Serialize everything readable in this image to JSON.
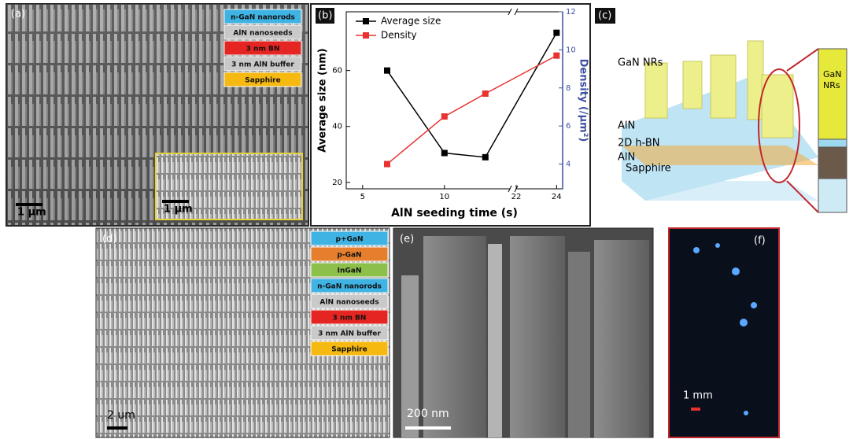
{
  "panels": {
    "a": {
      "label": "(a)",
      "legend": [
        {
          "text": "n-GaN nanorods",
          "color": "#3fb3e3"
        },
        {
          "text": "AlN nanoseeds",
          "color": "#c9c9c9"
        },
        {
          "text": "3 nm BN",
          "color": "#e52521"
        },
        {
          "text": "3 nm AlN buffer",
          "color": "#c9c9c9"
        },
        {
          "text": "Sapphire",
          "color": "#f6b911"
        }
      ],
      "scale_bar": "1 µm",
      "inset_scale_bar": "1 µm"
    },
    "c": {
      "label": "(c)",
      "nanorods": "GaN NRs",
      "layer_top": "AlN",
      "layer_bn": "2D h-BN",
      "layer_bottom": "AlN",
      "substrate": "Sapphire",
      "zoom_line1": "GaN",
      "zoom_line2": "NRs"
    },
    "d": {
      "label": "(d)",
      "legend": [
        {
          "text": "p+GaN",
          "color": "#3fb3e3"
        },
        {
          "text": "p-GaN",
          "color": "#e57f2d"
        },
        {
          "text": "InGaN",
          "color": "#8cc04b"
        },
        {
          "text": "n-GaN nanorods",
          "color": "#3fb3e3"
        },
        {
          "text": "AlN nanoseeds",
          "color": "#c9c9c9"
        },
        {
          "text": "3 nm BN",
          "color": "#e52521"
        },
        {
          "text": "3 nm AlN buffer",
          "color": "#c9c9c9"
        },
        {
          "text": "Sapphire",
          "color": "#f6b911"
        }
      ],
      "scale_bar": "2 um"
    },
    "e": {
      "label": "(e)",
      "scale_bar": "200 nm"
    },
    "f": {
      "label": "(f)",
      "scale_bar": "1 mm"
    }
  },
  "chart_data": {
    "type": "line",
    "panel_label": "(b)",
    "x_label": "AlN seeding time (s)",
    "y_label": "Average size (nm)",
    "y2_label": "Density (/µm²)",
    "x": [
      6.5,
      10,
      12.5,
      24
    ],
    "xlim": [
      4,
      24.3
    ],
    "x_break": [
      14,
      22
    ],
    "xticks": [
      5,
      10,
      22,
      24
    ],
    "ylim": [
      17.7,
      81
    ],
    "yticks": [
      20,
      40,
      60
    ],
    "y2lim": [
      2.7,
      12
    ],
    "y2ticks": [
      4,
      6,
      8,
      10,
      12
    ],
    "y2_color": "#3d4fa0",
    "legend": "upper left",
    "series": [
      {
        "name": "Average size",
        "color": "#000000",
        "values": [
          60,
          30.5,
          29,
          73.5
        ]
      },
      {
        "name": "Density",
        "color": "#e8322f",
        "axis": "y2",
        "values": [
          4,
          6.5,
          7.7,
          9.7
        ]
      }
    ]
  }
}
